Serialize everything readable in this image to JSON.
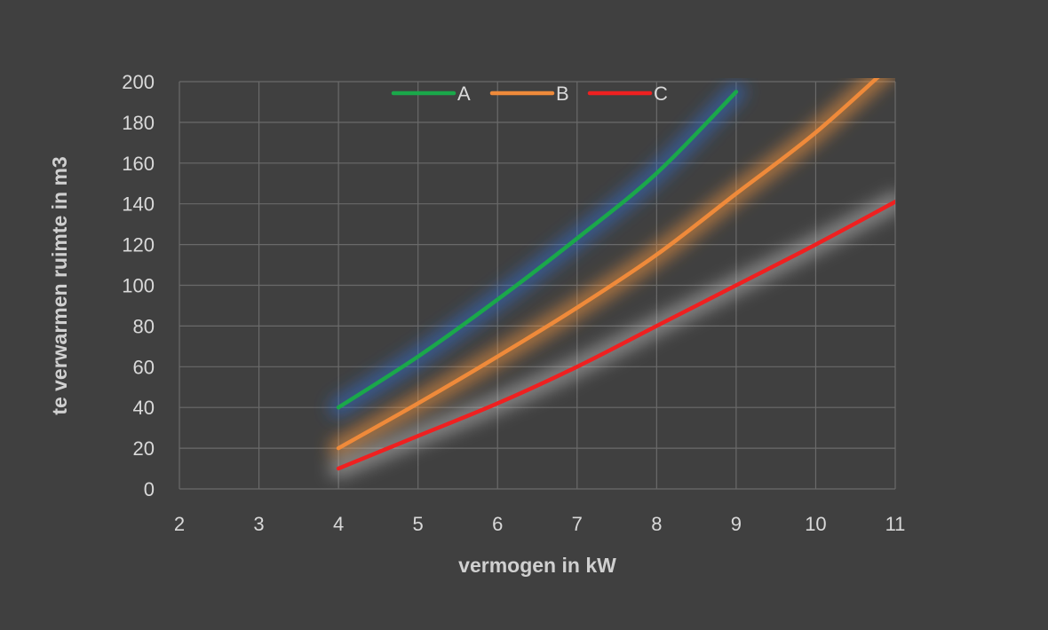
{
  "chart_data": {
    "type": "line",
    "title": "",
    "xlabel": "vermogen in kW",
    "ylabel": "te verwarmen ruimte in m3",
    "xlim": [
      2,
      11
    ],
    "ylim": [
      0,
      200
    ],
    "x_ticks": [
      2,
      3,
      4,
      5,
      6,
      7,
      8,
      9,
      10,
      11
    ],
    "y_ticks": [
      0,
      20,
      40,
      60,
      80,
      100,
      120,
      140,
      160,
      180,
      200
    ],
    "grid": true,
    "legend_position": "top",
    "series": [
      {
        "name": "A",
        "color": "#1aa84a",
        "glow": "#2f6fd1",
        "x": [
          4,
          5,
          6,
          7,
          8,
          9
        ],
        "y": [
          40,
          65,
          93,
          123,
          155,
          195
        ]
      },
      {
        "name": "B",
        "color": "#ef8a3a",
        "glow": "#ff9a40",
        "x": [
          4,
          5,
          6,
          7,
          8,
          9,
          10,
          11
        ],
        "y": [
          20,
          42,
          65,
          89,
          115,
          145,
          175,
          210
        ]
      },
      {
        "name": "C",
        "color": "#ef2020",
        "glow": "#bdbdbd",
        "x": [
          4,
          5,
          6,
          7,
          8,
          9,
          10,
          11
        ],
        "y": [
          10,
          26,
          42,
          60,
          80,
          100,
          120,
          141
        ]
      }
    ]
  }
}
